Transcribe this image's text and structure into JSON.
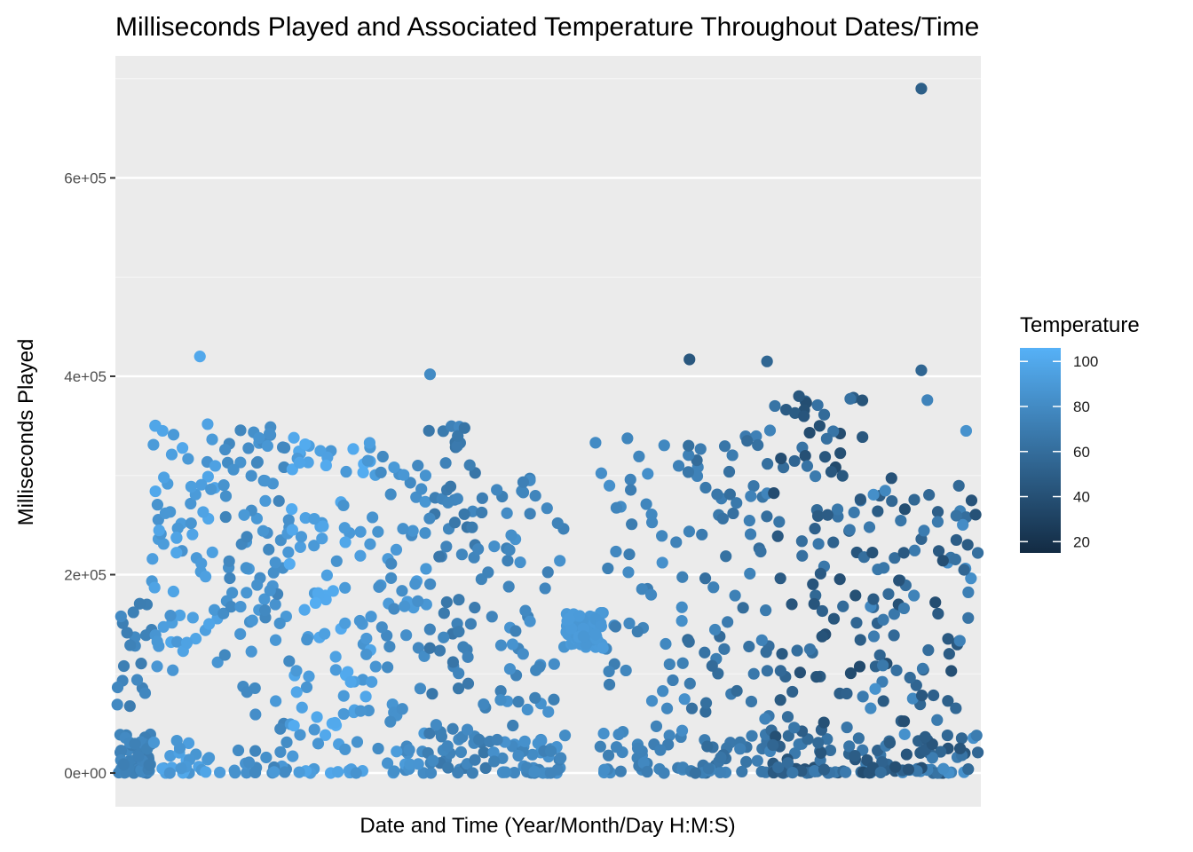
{
  "chart_data": {
    "type": "scatter",
    "title": "Milliseconds Played and Associated Temperature Throughout Dates/Time",
    "xlabel": "Date and Time (Year/Month/Day H:M:S)",
    "ylabel": "Milliseconds Played",
    "x_tick_labels": [],
    "y_ticks": [
      0,
      200000,
      400000,
      600000
    ],
    "y_tick_labels": [
      "0e+00",
      "2e+05",
      "4e+05",
      "6e+05"
    ],
    "ylim": [
      -34000,
      723000
    ],
    "grid": true,
    "colors": {
      "panel_background": "#ebebeb",
      "grid_major": "#ffffff",
      "grid_minor": "#f5f5f5",
      "low": "#132b43",
      "high": "#56b1f7"
    },
    "legend": {
      "title": "Temperature",
      "position": "right",
      "type": "colorbar",
      "min": 15,
      "max": 106,
      "ticks": [
        20,
        40,
        60,
        80,
        100
      ],
      "tick_labels": [
        "20",
        "40",
        "60",
        "80",
        "100"
      ]
    },
    "point_groups": [
      {
        "x_from": 0.0,
        "x_to": 0.04,
        "temp": [
          70,
          80
        ],
        "n_low": 55,
        "n_high": 20,
        "high_range": [
          60000,
          185000
        ]
      },
      {
        "x_from": 0.04,
        "x_to": 0.12,
        "temp": [
          85,
          100
        ],
        "n_low": 25,
        "n_high": 70,
        "high_range": [
          100000,
          355000
        ]
      },
      {
        "x_from": 0.12,
        "x_to": 0.2,
        "temp": [
          75,
          90
        ],
        "n_low": 18,
        "n_high": 85,
        "high_range": [
          40000,
          350000
        ]
      },
      {
        "x_from": 0.2,
        "x_to": 0.3,
        "temp": [
          85,
          103
        ],
        "n_low": 18,
        "n_high": 95,
        "high_range": [
          40000,
          335000
        ]
      },
      {
        "x_from": 0.3,
        "x_to": 0.36,
        "temp": [
          78,
          92
        ],
        "n_low": 14,
        "n_high": 50,
        "high_range": [
          20000,
          320000
        ]
      },
      {
        "x_from": 0.36,
        "x_to": 0.43,
        "temp": [
          65,
          80
        ],
        "n_low": 25,
        "n_high": 70,
        "high_range": [
          20000,
          350000
        ]
      },
      {
        "x_from": 0.43,
        "x_to": 0.52,
        "temp": [
          72,
          86
        ],
        "n_low": 45,
        "n_high": 55,
        "high_range": [
          20000,
          300000
        ]
      },
      {
        "x_from": 0.56,
        "x_to": 0.66,
        "temp": [
          70,
          84
        ],
        "n_low": 25,
        "n_high": 55,
        "high_range": [
          20000,
          340000
        ]
      },
      {
        "x_from": 0.66,
        "x_to": 0.76,
        "temp": [
          58,
          76
        ],
        "n_low": 35,
        "n_high": 70,
        "high_range": [
          20000,
          350000
        ]
      },
      {
        "x_from": 0.76,
        "x_to": 0.87,
        "temp": [
          35,
          70
        ],
        "n_low": 50,
        "n_high": 90,
        "high_range": [
          20000,
          380000
        ]
      },
      {
        "x_from": 0.87,
        "x_to": 1.0,
        "temp": [
          38,
          85
        ],
        "n_low": 50,
        "n_high": 95,
        "high_range": [
          20000,
          300000
        ]
      }
    ],
    "cluster": {
      "x_from": 0.52,
      "x_to": 0.565,
      "y_from": 125000,
      "y_to": 162000,
      "temp": 90,
      "n": 70
    },
    "outliers": [
      {
        "x": 0.096,
        "y": 420000,
        "temp": 100
      },
      {
        "x": 0.363,
        "y": 402000,
        "temp": 80
      },
      {
        "x": 0.664,
        "y": 417000,
        "temp": 45
      },
      {
        "x": 0.754,
        "y": 415000,
        "temp": 55
      },
      {
        "x": 0.933,
        "y": 690000,
        "temp": 50
      },
      {
        "x": 0.933,
        "y": 406000,
        "temp": 55
      },
      {
        "x": 0.94,
        "y": 376000,
        "temp": 75
      },
      {
        "x": 0.791,
        "y": 380000,
        "temp": 45
      },
      {
        "x": 0.815,
        "y": 350000,
        "temp": 40
      },
      {
        "x": 0.555,
        "y": 333000,
        "temp": 80
      },
      {
        "x": 0.985,
        "y": 345000,
        "temp": 85
      },
      {
        "x": 0.205,
        "y": 338000,
        "temp": 100
      }
    ]
  }
}
